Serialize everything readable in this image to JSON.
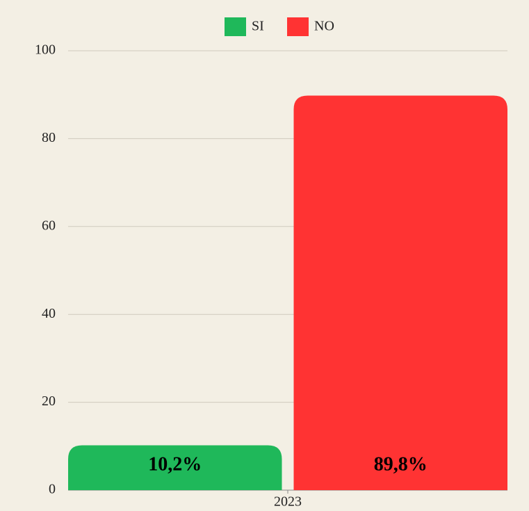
{
  "chart_data": {
    "type": "bar",
    "categories": [
      "2023"
    ],
    "series": [
      {
        "name": "SI",
        "color": "#1fb85a",
        "values": [
          10.2
        ],
        "value_labels": [
          "10,2%"
        ]
      },
      {
        "name": "NO",
        "color": "#ff3333",
        "values": [
          89.8
        ],
        "value_labels": [
          "89,8%"
        ]
      }
    ],
    "ylim": [
      0,
      100
    ],
    "yticks": [
      0,
      20,
      40,
      60,
      80,
      100
    ],
    "grid": true,
    "legend": "top"
  }
}
